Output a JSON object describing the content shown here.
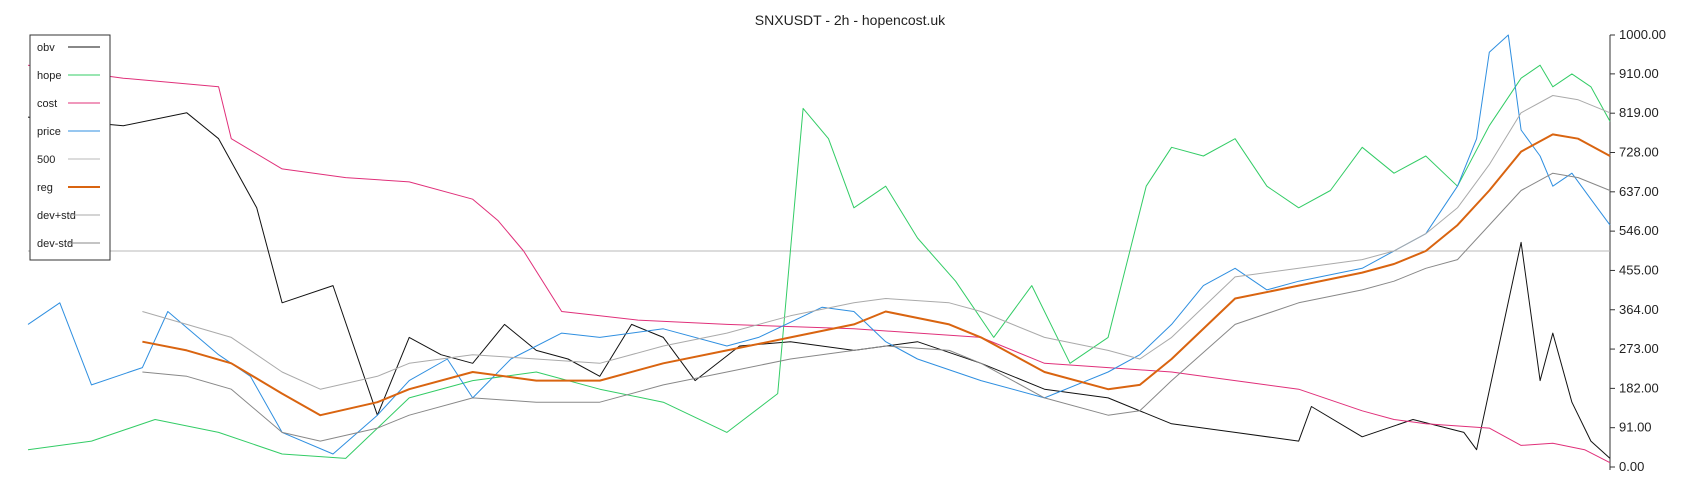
{
  "chart_data": {
    "type": "line",
    "title": "SNXUSDT - 2h - hopencost.uk",
    "xlabel": "",
    "ylabel": "",
    "ylim": [
      0,
      1000
    ],
    "yticks": [
      "0.00",
      "91.00",
      "182.00",
      "273.00",
      "364.00",
      "455.00",
      "546.00",
      "637.00",
      "728.00",
      "819.00",
      "910.00",
      "1000.00"
    ],
    "x_count": 250,
    "reference_line": 500,
    "grid": false,
    "legend_position": "top-left",
    "series": [
      {
        "name": "obv",
        "color": "#111111",
        "x": [
          0,
          15,
          25,
          30,
          36,
          40,
          48,
          55,
          60,
          65,
          70,
          75,
          80,
          85,
          90,
          95,
          100,
          105,
          112,
          120,
          130,
          140,
          150,
          160,
          170,
          180,
          190,
          200,
          202,
          210,
          218,
          226,
          228,
          235,
          238,
          240,
          243,
          246,
          249
        ],
        "values": [
          810,
          790,
          820,
          760,
          600,
          380,
          420,
          120,
          300,
          260,
          240,
          330,
          270,
          250,
          210,
          330,
          300,
          200,
          280,
          290,
          270,
          290,
          240,
          180,
          160,
          100,
          80,
          60,
          140,
          70,
          110,
          80,
          40,
          520,
          200,
          310,
          150,
          60,
          20
        ]
      },
      {
        "name": "hope",
        "color": "#33cc66",
        "x": [
          0,
          10,
          20,
          30,
          40,
          50,
          60,
          70,
          80,
          90,
          100,
          110,
          118,
          122,
          126,
          130,
          135,
          140,
          146,
          152,
          158,
          164,
          170,
          176,
          180,
          185,
          190,
          195,
          200,
          205,
          210,
          215,
          220,
          225,
          230,
          235,
          238,
          240,
          243,
          246,
          249
        ],
        "values": [
          40,
          60,
          110,
          80,
          30,
          20,
          160,
          200,
          220,
          180,
          150,
          80,
          170,
          830,
          760,
          600,
          650,
          530,
          430,
          300,
          420,
          240,
          300,
          650,
          740,
          720,
          760,
          650,
          600,
          640,
          740,
          680,
          720,
          650,
          790,
          900,
          930,
          880,
          910,
          880,
          800
        ]
      },
      {
        "name": "cost",
        "color": "#e0307a",
        "x": [
          0,
          15,
          30,
          32,
          40,
          50,
          60,
          70,
          74,
          78,
          84,
          90,
          96,
          110,
          130,
          150,
          160,
          170,
          180,
          190,
          200,
          210,
          215,
          220,
          230,
          235,
          240,
          245,
          249
        ],
        "values": [
          930,
          900,
          880,
          760,
          690,
          670,
          660,
          620,
          570,
          500,
          360,
          350,
          340,
          330,
          320,
          300,
          240,
          230,
          220,
          200,
          180,
          130,
          110,
          100,
          90,
          50,
          55,
          40,
          10
        ]
      },
      {
        "name": "price",
        "color": "#2f8fe0",
        "x": [
          0,
          5,
          10,
          18,
          22,
          30,
          35,
          40,
          48,
          55,
          60,
          66,
          70,
          76,
          84,
          90,
          100,
          110,
          115,
          125,
          130,
          135,
          140,
          150,
          160,
          170,
          175,
          180,
          185,
          190,
          195,
          200,
          210,
          215,
          220,
          225,
          228,
          230,
          233,
          235,
          238,
          240,
          243,
          246,
          249
        ],
        "values": [
          330,
          380,
          190,
          230,
          360,
          260,
          210,
          80,
          30,
          120,
          200,
          250,
          160,
          250,
          310,
          300,
          320,
          280,
          300,
          370,
          360,
          290,
          250,
          200,
          160,
          220,
          260,
          330,
          420,
          460,
          410,
          430,
          460,
          500,
          540,
          650,
          760,
          960,
          1000,
          780,
          720,
          650,
          680,
          620,
          560
        ]
      },
      {
        "name": "500",
        "color": "#b8b8b8",
        "x": [
          0,
          249
        ],
        "values": [
          500,
          500
        ]
      },
      {
        "name": "reg",
        "color": "#d96410",
        "x": [
          18,
          25,
          32,
          40,
          46,
          55,
          60,
          70,
          80,
          90,
          100,
          110,
          120,
          130,
          135,
          145,
          150,
          160,
          170,
          175,
          180,
          190,
          200,
          210,
          215,
          220,
          225,
          230,
          235,
          240,
          244,
          249
        ],
        "values": [
          290,
          270,
          240,
          170,
          120,
          150,
          180,
          220,
          200,
          200,
          240,
          270,
          300,
          330,
          360,
          330,
          300,
          220,
          180,
          190,
          250,
          390,
          420,
          450,
          470,
          500,
          560,
          640,
          730,
          770,
          760,
          720
        ]
      },
      {
        "name": "dev+std",
        "color": "#aaaaaa",
        "x": [
          18,
          25,
          32,
          40,
          46,
          55,
          60,
          70,
          80,
          90,
          100,
          110,
          120,
          130,
          135,
          145,
          150,
          160,
          170,
          175,
          180,
          190,
          200,
          210,
          215,
          220,
          225,
          230,
          235,
          240,
          244,
          249
        ],
        "values": [
          360,
          330,
          300,
          220,
          180,
          210,
          240,
          260,
          250,
          240,
          280,
          310,
          350,
          380,
          390,
          380,
          360,
          300,
          270,
          250,
          300,
          440,
          460,
          480,
          500,
          540,
          600,
          700,
          820,
          860,
          850,
          820
        ]
      },
      {
        "name": "dev-std",
        "color": "#888888",
        "x": [
          18,
          25,
          32,
          40,
          46,
          55,
          60,
          70,
          80,
          90,
          100,
          110,
          120,
          130,
          135,
          145,
          150,
          160,
          170,
          175,
          180,
          190,
          200,
          210,
          215,
          220,
          225,
          230,
          235,
          240,
          244,
          249
        ],
        "values": [
          220,
          210,
          180,
          80,
          60,
          90,
          120,
          160,
          150,
          150,
          190,
          220,
          250,
          270,
          280,
          270,
          240,
          160,
          120,
          130,
          200,
          330,
          380,
          410,
          430,
          460,
          480,
          560,
          640,
          680,
          670,
          640
        ]
      }
    ]
  }
}
